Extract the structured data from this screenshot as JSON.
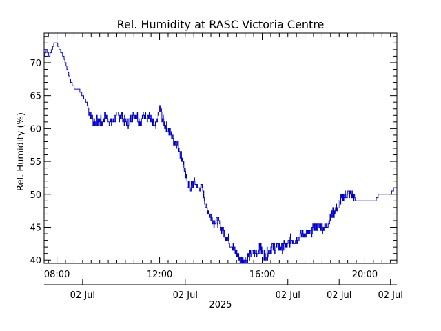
{
  "chart_data": {
    "type": "line",
    "title": "Rel. Humidity at RASC Victoria Centre",
    "ylabel": "Rel. Humidity (%)",
    "xlabel": "2025",
    "x_unit": "hours",
    "xlim": [
      7.5,
      21.25
    ],
    "ylim": [
      39.5,
      74.5
    ],
    "y_ticks": [
      40,
      45,
      50,
      55,
      60,
      65,
      70
    ],
    "x_ticks": [
      {
        "x": 8,
        "label": "08:00"
      },
      {
        "x": 12,
        "label": "12:00"
      },
      {
        "x": 16,
        "label": "16:00"
      },
      {
        "x": 20,
        "label": "20:00"
      }
    ],
    "date_ticks": [
      {
        "x": 9,
        "label": "02 Jul"
      },
      {
        "x": 13,
        "label": "02 Jul"
      },
      {
        "x": 17,
        "label": "02 Jul"
      },
      {
        "x": 19,
        "label": "02 Jul"
      },
      {
        "x": 21,
        "label": "02 Jul"
      }
    ],
    "grid": false,
    "series": [
      {
        "color": "#0000cc",
        "x": [
          7.5,
          7.6,
          7.7,
          7.8,
          7.9,
          8.0,
          8.1,
          8.25,
          8.4,
          8.55,
          8.7,
          8.85,
          9.0,
          9.15,
          9.3,
          9.45,
          9.6,
          9.75,
          9.9,
          10.05,
          10.2,
          10.35,
          10.5,
          10.65,
          10.8,
          10.95,
          11.1,
          11.25,
          11.4,
          11.55,
          11.7,
          11.85,
          12.0,
          12.15,
          12.3,
          12.45,
          12.6,
          12.75,
          12.9,
          13.05,
          13.2,
          13.35,
          13.5,
          13.65,
          13.8,
          13.95,
          14.1,
          14.25,
          14.4,
          14.55,
          14.7,
          14.85,
          15.0,
          15.15,
          15.3,
          15.45,
          15.6,
          15.75,
          15.9,
          16.05,
          16.2,
          16.35,
          16.5,
          16.65,
          16.8,
          16.95,
          17.1,
          17.25,
          17.4,
          17.55,
          17.7,
          17.85,
          18.0,
          18.15,
          18.3,
          18.45,
          18.6,
          18.75,
          18.9,
          19.05,
          19.2,
          19.35,
          19.5,
          19.65,
          19.8,
          19.95,
          20.1,
          20.25,
          20.4,
          20.55,
          20.7,
          20.85,
          21.0,
          21.15,
          21.25
        ],
        "y": [
          71,
          72,
          71,
          72,
          73,
          73,
          72,
          71,
          69,
          67,
          66,
          66,
          65,
          64,
          62,
          61,
          61,
          61,
          62,
          61,
          61,
          62,
          62,
          61,
          61,
          62,
          62,
          61,
          62,
          62,
          61,
          60,
          63,
          61,
          60,
          59,
          58,
          57,
          55,
          52,
          51,
          52,
          51,
          51,
          48,
          47,
          46,
          46,
          45,
          44,
          43,
          42,
          41,
          40,
          40,
          40.5,
          41,
          41,
          42,
          41,
          41,
          42,
          42,
          42,
          42,
          42,
          43,
          43,
          43.5,
          44,
          44,
          44,
          45,
          45,
          45,
          45,
          46,
          47,
          48,
          49,
          50,
          50,
          50,
          49,
          49,
          49,
          49,
          49,
          49,
          50,
          50,
          50,
          50,
          51,
          51
        ]
      }
    ]
  }
}
